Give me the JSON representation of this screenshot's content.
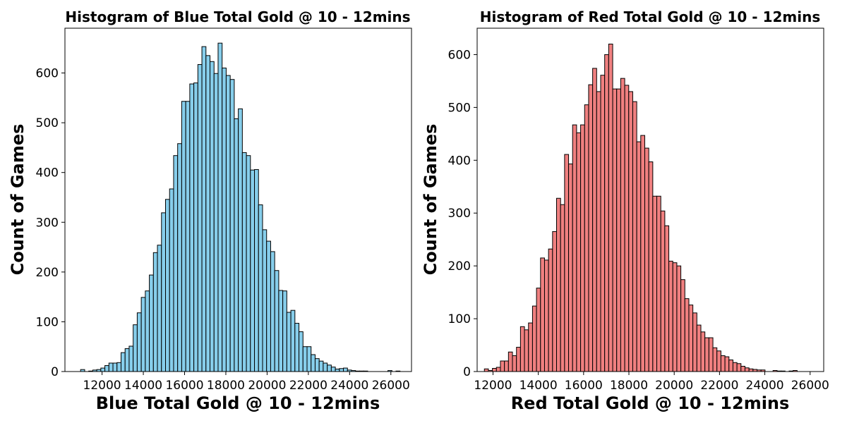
{
  "chart_data": [
    {
      "type": "bar",
      "subtype": "histogram",
      "title": "Histogram of Blue Total Gold @ 10 - 12mins",
      "xlabel": "Blue Total Gold @ 10 - 12mins",
      "ylabel": "Count of Games",
      "xlim": [
        10200,
        27000
      ],
      "ylim": [
        0,
        690
      ],
      "xticks": [
        12000,
        14000,
        16000,
        18000,
        20000,
        22000,
        24000,
        26000
      ],
      "yticks": [
        0,
        100,
        200,
        300,
        400,
        500,
        600
      ],
      "bar_color": "#87ceeb",
      "edge_color": "#000000",
      "grid": false,
      "bin_width": 196,
      "bin_start": 10960,
      "counts": [
        4,
        0,
        1,
        3,
        4,
        7,
        12,
        17,
        17,
        18,
        38,
        46,
        51,
        94,
        118,
        149,
        162,
        194,
        239,
        254,
        319,
        346,
        367,
        434,
        458,
        543,
        543,
        578,
        580,
        617,
        653,
        635,
        623,
        599,
        660,
        610,
        595,
        587,
        508,
        528,
        440,
        434,
        405,
        406,
        335,
        285,
        262,
        241,
        203,
        163,
        162,
        119,
        123,
        97,
        80,
        50,
        50,
        34,
        26,
        21,
        17,
        13,
        9,
        5,
        6,
        7,
        3,
        2,
        1,
        1,
        1,
        0,
        0,
        0,
        0,
        0,
        2,
        0,
        1
      ]
    },
    {
      "type": "bar",
      "subtype": "histogram",
      "title": "Histogram of Red Total Gold @ 10 - 12mins",
      "xlabel": "Red Total Gold @ 10 - 12mins",
      "ylabel": "Count of Games",
      "xlim": [
        11300,
        26600
      ],
      "ylim": [
        0,
        650
      ],
      "xticks": [
        12000,
        14000,
        16000,
        18000,
        20000,
        22000,
        24000,
        26000
      ],
      "yticks": [
        0,
        100,
        200,
        300,
        400,
        500,
        600
      ],
      "bar_color": "#f08080",
      "edge_color": "#000000",
      "grid": false,
      "bin_width": 177,
      "bin_start": 11620,
      "counts": [
        5,
        2,
        6,
        8,
        20,
        20,
        37,
        30,
        46,
        85,
        79,
        92,
        124,
        158,
        215,
        211,
        232,
        265,
        328,
        316,
        411,
        393,
        467,
        452,
        467,
        505,
        543,
        574,
        530,
        561,
        600,
        620,
        535,
        535,
        555,
        542,
        530,
        511,
        435,
        447,
        423,
        397,
        332,
        332,
        304,
        276,
        209,
        206,
        200,
        174,
        138,
        126,
        111,
        88,
        75,
        64,
        64,
        45,
        39,
        30,
        28,
        22,
        17,
        15,
        10,
        7,
        5,
        4,
        3,
        3,
        0,
        0,
        2,
        1,
        1,
        0,
        1,
        2
      ]
    }
  ]
}
